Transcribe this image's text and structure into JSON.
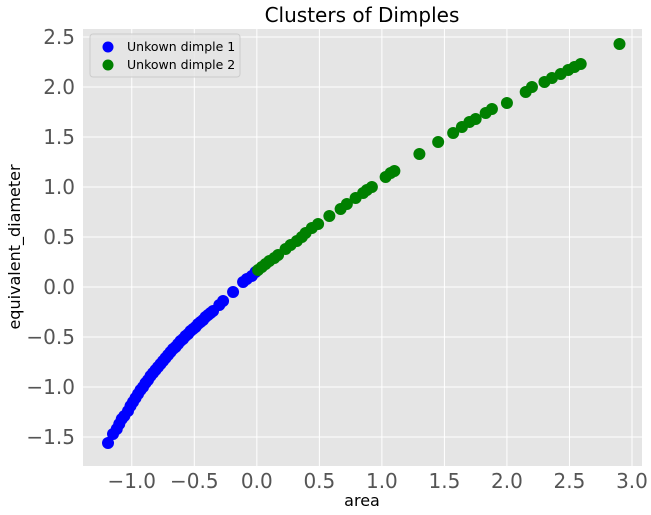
{
  "chart_data": {
    "type": "scatter",
    "title": "Clusters of Dimples",
    "xlabel": "area",
    "ylabel": "equivalent_diameter",
    "xlim": [
      -1.39,
      3.08
    ],
    "ylim": [
      -1.79,
      2.58
    ],
    "xticks": [
      -1.0,
      -0.5,
      0.0,
      0.5,
      1.0,
      1.5,
      2.0,
      2.5,
      3.0
    ],
    "xtick_labels": [
      "−1.0",
      "−0.5",
      "0.0",
      "0.5",
      "1.0",
      "1.5",
      "2.0",
      "2.5",
      "3.0"
    ],
    "yticks": [
      -1.5,
      -1.0,
      -0.5,
      0.0,
      0.5,
      1.0,
      1.5,
      2.0,
      2.5
    ],
    "ytick_labels": [
      "−1.5",
      "−1.0",
      "−0.5",
      "0.0",
      "0.5",
      "1.0",
      "1.5",
      "2.0",
      "2.5"
    ],
    "grid": true,
    "legend_position": "top-left",
    "series": [
      {
        "name": "Unkown dimple 1",
        "color": "#0000ff",
        "points": [
          [
            -1.19,
            -1.56
          ],
          [
            -1.15,
            -1.47
          ],
          [
            -1.12,
            -1.42
          ],
          [
            -1.1,
            -1.37
          ],
          [
            -1.08,
            -1.32
          ],
          [
            -1.06,
            -1.29
          ],
          [
            -1.03,
            -1.24
          ],
          [
            -1.01,
            -1.19
          ],
          [
            -0.99,
            -1.15
          ],
          [
            -0.97,
            -1.11
          ],
          [
            -0.95,
            -1.07
          ],
          [
            -0.93,
            -1.03
          ],
          [
            -0.91,
            -1.0
          ],
          [
            -0.89,
            -0.96
          ],
          [
            -0.87,
            -0.93
          ],
          [
            -0.85,
            -0.89
          ],
          [
            -0.83,
            -0.86
          ],
          [
            -0.81,
            -0.83
          ],
          [
            -0.79,
            -0.8
          ],
          [
            -0.77,
            -0.77
          ],
          [
            -0.75,
            -0.74
          ],
          [
            -0.73,
            -0.71
          ],
          [
            -0.71,
            -0.68
          ],
          [
            -0.69,
            -0.65
          ],
          [
            -0.67,
            -0.62
          ],
          [
            -0.65,
            -0.6
          ],
          [
            -0.63,
            -0.57
          ],
          [
            -0.61,
            -0.54
          ],
          [
            -0.59,
            -0.52
          ],
          [
            -0.57,
            -0.49
          ],
          [
            -0.55,
            -0.47
          ],
          [
            -0.53,
            -0.44
          ],
          [
            -0.51,
            -0.42
          ],
          [
            -0.49,
            -0.4
          ],
          [
            -0.47,
            -0.37
          ],
          [
            -0.45,
            -0.35
          ],
          [
            -0.43,
            -0.33
          ],
          [
            -0.41,
            -0.3
          ],
          [
            -0.39,
            -0.28
          ],
          [
            -0.37,
            -0.26
          ],
          [
            -0.35,
            -0.24
          ],
          [
            -0.3,
            -0.18
          ],
          [
            -0.27,
            -0.14
          ],
          [
            -0.19,
            -0.05
          ],
          [
            -0.11,
            0.05
          ],
          [
            -0.08,
            0.08
          ],
          [
            -0.04,
            0.11
          ],
          [
            -0.01,
            0.15
          ]
        ]
      },
      {
        "name": "Unkown dimple 2",
        "color": "#008000",
        "points": [
          [
            0.01,
            0.17
          ],
          [
            0.04,
            0.2
          ],
          [
            0.07,
            0.23
          ],
          [
            0.1,
            0.26
          ],
          [
            0.14,
            0.29
          ],
          [
            0.17,
            0.32
          ],
          [
            0.23,
            0.38
          ],
          [
            0.27,
            0.42
          ],
          [
            0.32,
            0.46
          ],
          [
            0.36,
            0.5
          ],
          [
            0.39,
            0.54
          ],
          [
            0.44,
            0.59
          ],
          [
            0.49,
            0.63
          ],
          [
            0.58,
            0.71
          ],
          [
            0.67,
            0.78
          ],
          [
            0.72,
            0.83
          ],
          [
            0.79,
            0.89
          ],
          [
            0.85,
            0.94
          ],
          [
            0.88,
            0.97
          ],
          [
            0.92,
            1.0
          ],
          [
            1.03,
            1.1
          ],
          [
            1.07,
            1.14
          ],
          [
            1.1,
            1.16
          ],
          [
            1.3,
            1.33
          ],
          [
            1.45,
            1.45
          ],
          [
            1.57,
            1.54
          ],
          [
            1.64,
            1.6
          ],
          [
            1.7,
            1.65
          ],
          [
            1.75,
            1.68
          ],
          [
            1.83,
            1.74
          ],
          [
            1.88,
            1.78
          ],
          [
            2.0,
            1.84
          ],
          [
            2.15,
            1.95
          ],
          [
            2.2,
            2.0
          ],
          [
            2.3,
            2.05
          ],
          [
            2.36,
            2.09
          ],
          [
            2.43,
            2.13
          ],
          [
            2.49,
            2.17
          ],
          [
            2.54,
            2.2
          ],
          [
            2.59,
            2.23
          ],
          [
            2.9,
            2.43
          ]
        ]
      }
    ]
  }
}
